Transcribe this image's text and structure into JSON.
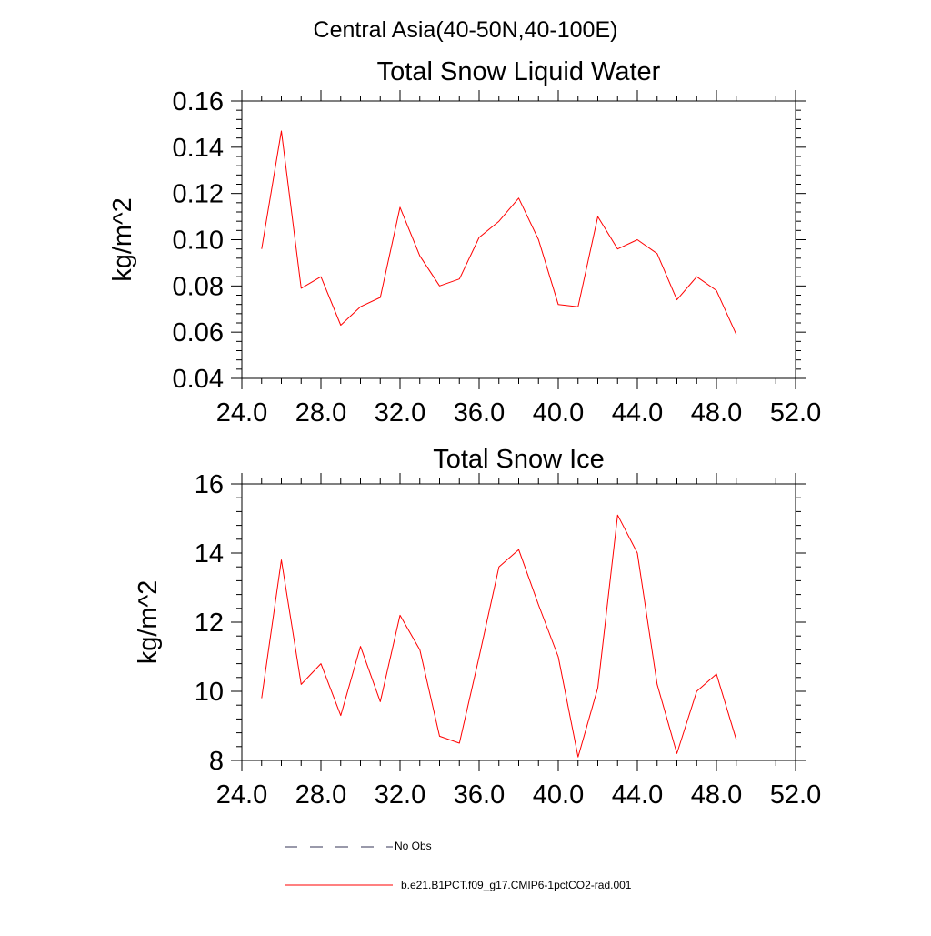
{
  "suptitle": "Central Asia(40-50N,40-100E)",
  "colors": {
    "series": "#ff0000",
    "axes": "#000000",
    "noobs": "#333355"
  },
  "legend": {
    "items": [
      {
        "label": "No Obs",
        "style": "dashed"
      },
      {
        "label": "b.e21.B1PCT.f09_g17.CMIP6-1pctCO2-rad.001",
        "style": "solid"
      }
    ]
  },
  "chart_data": [
    {
      "type": "line",
      "title": "Total Snow Liquid Water",
      "xlabel": "",
      "ylabel": "kg/m^2",
      "xlim": [
        24,
        52
      ],
      "ylim": [
        0.04,
        0.16
      ],
      "x_ticks": [
        "24.0",
        "28.0",
        "32.0",
        "36.0",
        "40.0",
        "44.0",
        "48.0",
        "52.0"
      ],
      "y_ticks": [
        "0.04",
        "0.06",
        "0.08",
        "0.10",
        "0.12",
        "0.14",
        "0.16"
      ],
      "x": [
        25,
        26,
        27,
        28,
        29,
        30,
        31,
        32,
        33,
        34,
        35,
        36,
        37,
        38,
        39,
        40,
        41,
        42,
        43,
        44,
        45,
        46,
        47,
        48,
        49
      ],
      "series": [
        {
          "name": "b.e21.B1PCT.f09_g17.CMIP6-1pctCO2-rad.001",
          "values": [
            0.096,
            0.147,
            0.079,
            0.084,
            0.063,
            0.071,
            0.075,
            0.114,
            0.093,
            0.08,
            0.083,
            0.101,
            0.108,
            0.118,
            0.1,
            0.072,
            0.071,
            0.11,
            0.096,
            0.1,
            0.094,
            0.074,
            0.084,
            0.078,
            0.059
          ]
        }
      ]
    },
    {
      "type": "line",
      "title": "Total Snow Ice",
      "xlabel": "",
      "ylabel": "kg/m^2",
      "xlim": [
        24,
        52
      ],
      "ylim": [
        8,
        16
      ],
      "x_ticks": [
        "24.0",
        "28.0",
        "32.0",
        "36.0",
        "40.0",
        "44.0",
        "48.0",
        "52.0"
      ],
      "y_ticks": [
        "8",
        "10",
        "12",
        "14",
        "16"
      ],
      "x": [
        25,
        26,
        27,
        28,
        29,
        30,
        31,
        32,
        33,
        34,
        35,
        36,
        37,
        38,
        39,
        40,
        41,
        42,
        43,
        44,
        45,
        46,
        47,
        48,
        49
      ],
      "series": [
        {
          "name": "b.e21.B1PCT.f09_g17.CMIP6-1pctCO2-rad.001",
          "values": [
            9.8,
            13.8,
            10.2,
            10.8,
            9.3,
            11.3,
            9.7,
            12.2,
            11.2,
            8.7,
            8.5,
            11.0,
            13.6,
            14.1,
            12.5,
            11.0,
            8.1,
            10.1,
            15.1,
            14.0,
            10.2,
            8.2,
            10.0,
            10.5,
            8.6
          ]
        }
      ]
    }
  ]
}
